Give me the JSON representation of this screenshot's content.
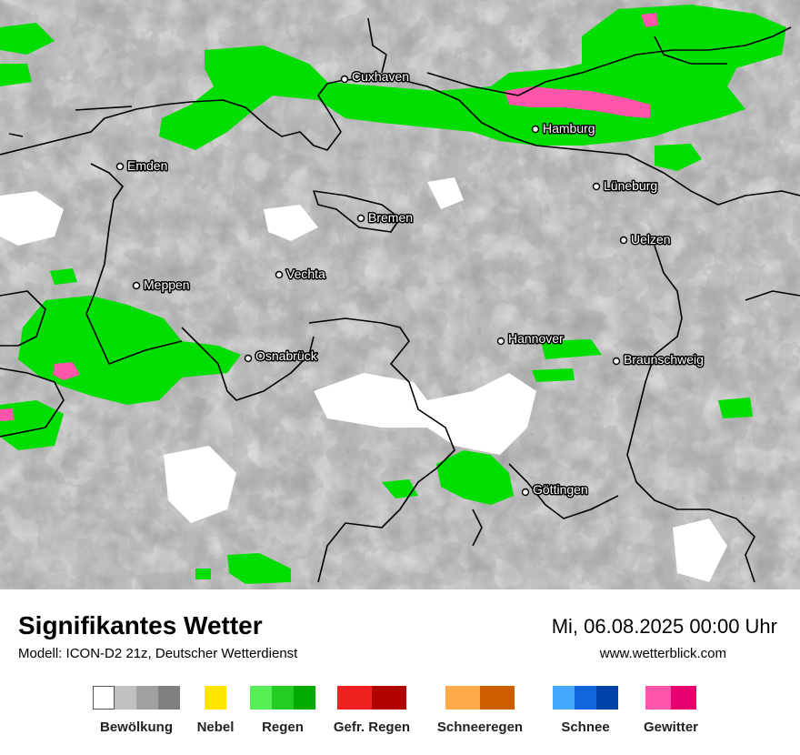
{
  "title": "Signifikantes Wetter",
  "subtitle": "Modell: ICON-D2 21z, Deutscher Wetterdienst",
  "datetime": "Mi, 06.08.2025 00:00 Uhr",
  "website": "www.wetterblick.com",
  "cities": [
    {
      "name": "Cuxhaven"
    },
    {
      "name": "Hamburg"
    },
    {
      "name": "Emden"
    },
    {
      "name": "Lüneburg"
    },
    {
      "name": "Bremen"
    },
    {
      "name": "Uelzen"
    },
    {
      "name": "Vechta"
    },
    {
      "name": "Meppen"
    },
    {
      "name": "Hannover"
    },
    {
      "name": "Osnabrück"
    },
    {
      "name": "Braunschweig"
    },
    {
      "name": "Göttingen"
    }
  ],
  "colors": {
    "cloud": [
      "#ffffff",
      "#c0c0c0",
      "#a0a0a0",
      "#808080"
    ],
    "fog": [
      "#ffe600"
    ],
    "rain": [
      "#55ee55",
      "#22cc22",
      "#00aa00"
    ],
    "freezing_rain": [
      "#ee2020",
      "#b00000"
    ],
    "snow_rain": [
      "#ffaa4a",
      "#cc5e00"
    ],
    "snow": [
      "#44aaff",
      "#1166dd",
      "#0044aa"
    ],
    "thunderstorm": [
      "#ff55aa",
      "#e6006e"
    ]
  },
  "legend": [
    {
      "label": "Bewölkung",
      "key": "cloud"
    },
    {
      "label": "Nebel",
      "key": "fog"
    },
    {
      "label": "Regen",
      "key": "rain"
    },
    {
      "label": "Gefr. Regen",
      "key": "freezing_rain"
    },
    {
      "label": "Schneeregen",
      "key": "snow_rain"
    },
    {
      "label": "Schnee",
      "key": "snow"
    },
    {
      "label": "Gewitter",
      "key": "thunderstorm"
    }
  ]
}
